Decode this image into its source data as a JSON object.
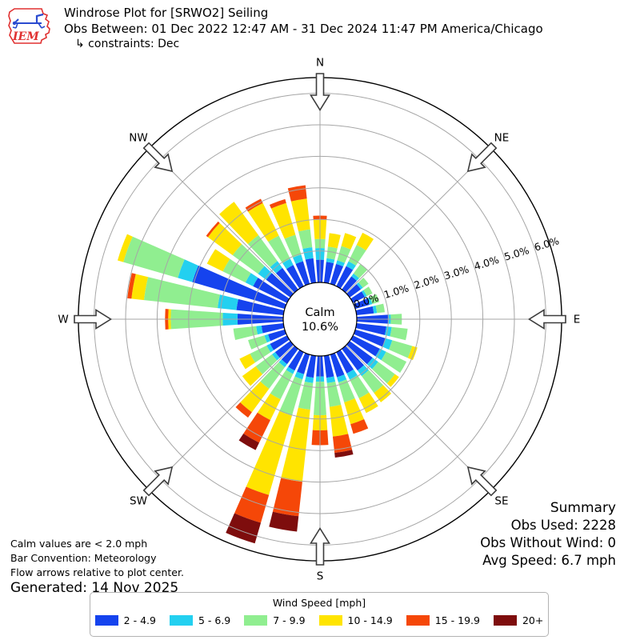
{
  "header": {
    "logo_text": "IEM",
    "title": "Windrose Plot for [SRWO2] Seiling",
    "subtitle": "Obs Between: 01 Dec 2022 12:47 AM - 31 Dec 2024 11:47 PM America/Chicago",
    "constraints": "↳ constraints: Dec"
  },
  "summary": {
    "title": "Summary",
    "obs_used": "Obs Used: 2228",
    "obs_without_wind": "Obs Without Wind: 0",
    "avg_speed": "Avg Speed: 6.7 mph"
  },
  "footnotes": {
    "calm_note": "Calm values are < 2.0 mph",
    "convention_note": "Bar Convention: Meteorology",
    "arrows_note": "Flow arrows relative to plot center.",
    "generated": "Generated: 14 Nov 2025"
  },
  "legend": {
    "title": "Wind Speed [mph]"
  },
  "chart_data": {
    "type": "windrose",
    "units": "percent frequency of wind direction by speed bin",
    "calm_label": "Calm",
    "calm_value_label": "10.6%",
    "calm_percent": 10.6,
    "compass_labels": [
      "N",
      "NE",
      "E",
      "SE",
      "S",
      "SW",
      "W",
      "NW"
    ],
    "ring_values": [
      0,
      1,
      2,
      3,
      4,
      5,
      6
    ],
    "ring_labels": [
      "0.0%",
      "1.0%",
      "2.0%",
      "3.0%",
      "4.0%",
      "5.0%",
      "6.0%"
    ],
    "outer_limit_percent": 6.5,
    "grid_color": "#a6a6a6",
    "directions_deg": [
      0,
      10,
      20,
      30,
      40,
      50,
      60,
      70,
      80,
      90,
      100,
      110,
      120,
      130,
      140,
      150,
      160,
      170,
      180,
      190,
      200,
      210,
      220,
      230,
      240,
      250,
      260,
      270,
      280,
      290,
      300,
      310,
      320,
      330,
      340,
      350
    ],
    "series": [
      {
        "name": "2 - 4.9",
        "color": "#1543ee",
        "values": [
          0.72,
          0.66,
          0.66,
          0.71,
          0.52,
          0.44,
          0.42,
          0.47,
          0.55,
          1.0,
          0.95,
          1.0,
          0.95,
          0.9,
          0.85,
          0.75,
          0.75,
          0.7,
          0.65,
          0.7,
          0.65,
          0.65,
          0.6,
          0.6,
          0.6,
          0.55,
          0.7,
          1.45,
          1.5,
          3.05,
          1.2,
          0.95,
          0.85,
          0.75,
          0.75,
          0.78
        ]
      },
      {
        "name": "5 - 6.9",
        "color": "#23d0f0",
        "values": [
          0.37,
          0.12,
          0.12,
          0.17,
          0.11,
          0.08,
          0.07,
          0.09,
          0.1,
          0.08,
          0.17,
          0.22,
          0.22,
          0.22,
          0.22,
          0.22,
          0.17,
          0.17,
          0.17,
          0.17,
          0.17,
          0.12,
          0.12,
          0.12,
          0.12,
          0.12,
          0.17,
          0.47,
          0.6,
          0.48,
          0.27,
          0.32,
          0.27,
          0.22,
          0.22,
          0.35
        ]
      },
      {
        "name": "7 - 9.9",
        "color": "#90ee90",
        "values": [
          0.29,
          0.37,
          0.47,
          0.58,
          0.37,
          0.22,
          0.2,
          0.23,
          0.25,
          0.35,
          0.51,
          0.66,
          0.72,
          0.66,
          0.66,
          0.66,
          0.66,
          0.76,
          1.06,
          0.85,
          1.2,
          0.9,
          0.85,
          0.64,
          0.59,
          0.54,
          0.73,
          1.65,
          2.35,
          1.8,
          0.8,
          1.0,
          1.02,
          0.82,
          0.65,
          0.57
        ]
      },
      {
        "name": "10 - 14.9",
        "color": "#ffe400",
        "values": [
          0.61,
          0.43,
          0.43,
          0.43,
          0,
          0,
          0,
          0,
          0,
          0,
          0,
          0.17,
          0,
          0.16,
          0.37,
          0.52,
          0.72,
          0.95,
          0.48,
          2.3,
          2.62,
          0.73,
          0.92,
          0.53,
          0.37,
          0,
          0,
          0.08,
          0.4,
          0.19,
          0.56,
          0.97,
          1.31,
          1.15,
          1.05,
          0.98
        ]
      },
      {
        "name": "15 - 19.9",
        "color": "#f54708",
        "values": [
          0.13,
          0,
          0,
          0,
          0,
          0,
          0,
          0,
          0,
          0,
          0,
          0,
          0,
          0,
          0,
          0,
          0.32,
          0.52,
          0.47,
          1.1,
          0.92,
          0.8,
          0.21,
          0,
          0,
          0,
          0,
          0.1,
          0.13,
          0,
          0,
          0.07,
          0,
          0.15,
          0.13,
          0.43
        ]
      },
      {
        "name": "20+",
        "color": "#7e0d0d",
        "values": [
          0,
          0,
          0,
          0,
          0,
          0,
          0,
          0,
          0,
          0,
          0,
          0,
          0,
          0,
          0,
          0,
          0,
          0.15,
          0,
          0.49,
          0.68,
          0.26,
          0,
          0,
          0,
          0,
          0,
          0,
          0,
          0,
          0,
          0,
          0,
          0,
          0,
          0
        ]
      }
    ],
    "legend_title": "Wind Speed [mph]"
  }
}
